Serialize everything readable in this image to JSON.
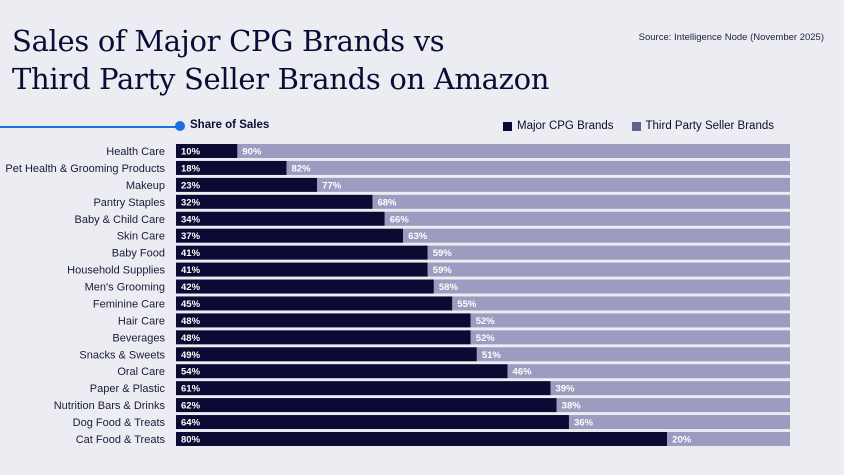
{
  "header": {
    "title_line1": "Sales of Major CPG Brands vs",
    "title_line2": "Third Party Seller Brands on Amazon",
    "source": "Source: Intelligence Node (November 2025)",
    "subtitle": "Share of Sales"
  },
  "colors": {
    "major": "#0a0a33",
    "third_party": "#9c9cc0",
    "third_party_legend": "#62628a",
    "accent": "#1a6fe0"
  },
  "chart_data": {
    "type": "bar",
    "orientation": "horizontal",
    "stacked": true,
    "title": "Share of Sales",
    "xlim": [
      0,
      100
    ],
    "legend_placement": "top-right",
    "categories": [
      "Health Care",
      "Pet Health & Grooming Products",
      "Makeup",
      "Pantry Staples",
      "Baby & Child Care",
      "Skin Care",
      "Baby Food",
      "Household Supplies",
      "Men's Grooming",
      "Feminine Care",
      "Hair Care",
      "Beverages",
      "Snacks & Sweets",
      "Oral Care",
      "Paper & Plastic",
      "Nutrition Bars & Drinks",
      "Dog Food & Treats",
      "Cat Food & Treats"
    ],
    "series": [
      {
        "name": "Major CPG Brands",
        "values": [
          10,
          18,
          23,
          32,
          34,
          37,
          41,
          41,
          42,
          45,
          48,
          48,
          49,
          54,
          61,
          62,
          64,
          80
        ]
      },
      {
        "name": "Third Party Seller Brands",
        "values": [
          90,
          82,
          77,
          68,
          66,
          63,
          59,
          59,
          58,
          55,
          52,
          52,
          51,
          46,
          39,
          38,
          36,
          20
        ]
      }
    ]
  }
}
